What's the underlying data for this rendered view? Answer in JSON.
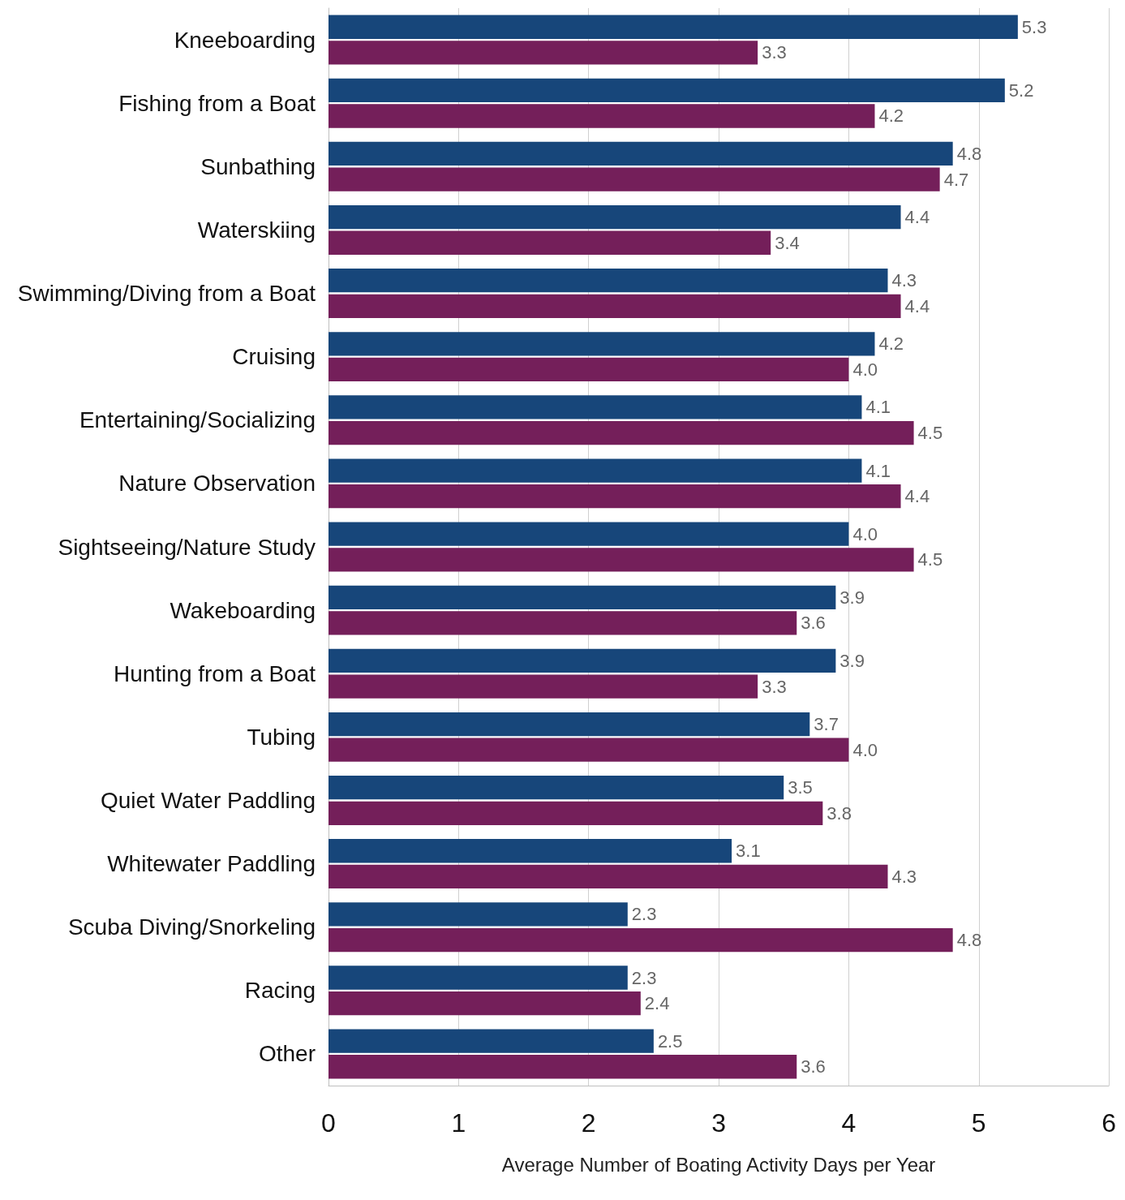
{
  "chart_data": {
    "type": "bar",
    "orientation": "horizontal",
    "xlabel": "Average Number of Boating Activity Days per Year",
    "categories": [
      "Kneeboarding",
      "Fishing from a Boat",
      "Sunbathing",
      "Waterskiing",
      "Swimming/Diving from a Boat",
      "Cruising",
      "Entertaining/Socializing",
      "Nature Observation",
      "Sightseeing/Nature Study",
      "Wakeboarding",
      "Hunting from a Boat",
      "Tubing",
      "Quiet Water Paddling",
      "Whitewater Paddling",
      "Scuba Diving/Snorkeling",
      "Racing",
      "Other"
    ],
    "series": [
      {
        "color": "#17467a",
        "values": [
          5.3,
          5.2,
          4.8,
          4.4,
          4.3,
          4.2,
          4.1,
          4.1,
          4.0,
          3.9,
          3.9,
          3.7,
          3.5,
          3.1,
          2.3,
          2.3,
          2.5
        ],
        "value_labels": [
          "5.3",
          "5.2",
          "4.8",
          "4.4",
          "4.3",
          "4.2",
          "4.1",
          "4.1",
          "4.0",
          "3.9",
          "3.9",
          "3.7",
          "3.5",
          "3.1",
          "2.3",
          "2.3",
          "2.5"
        ]
      },
      {
        "color": "#741f5a",
        "values": [
          3.3,
          4.2,
          4.7,
          3.4,
          4.4,
          4.0,
          4.5,
          4.4,
          4.5,
          3.6,
          3.3,
          4.0,
          3.8,
          4.3,
          4.8,
          2.4,
          3.6
        ],
        "value_labels": [
          "3.3",
          "4.2",
          "4.7",
          "3.4",
          "4.4",
          "4.0",
          "4.5",
          "4.4",
          "4.5",
          "3.6",
          "3.3",
          "4.0",
          "3.8",
          "4.3",
          "4.8",
          "2.4",
          "3.6"
        ]
      }
    ],
    "xlim": [
      0,
      6
    ],
    "xticks": [
      0,
      1,
      2,
      3,
      4,
      5,
      6
    ],
    "grid": "x"
  }
}
